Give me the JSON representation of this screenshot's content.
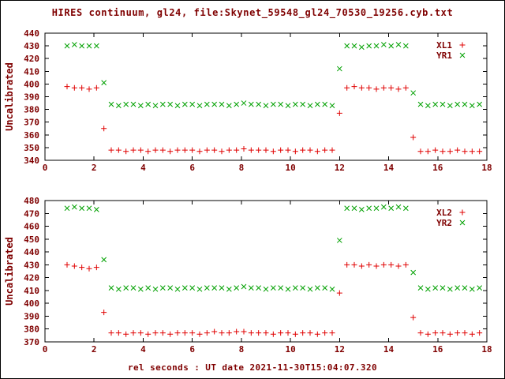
{
  "window": {
    "title": "HIRES continuum, gl24, file:Skynet_59548_gl24_70530_19256.cyb.txt",
    "xlabel": "rel seconds : UT date 2021-11-30T15:04:07.320"
  },
  "colors": {
    "text": "#7f0000",
    "axis": "#000000",
    "xl": "#e00000",
    "yr": "#00a000"
  },
  "chart_data": [
    {
      "type": "scatter",
      "ylabel": "Uncalibrated",
      "xlim": [
        0,
        18
      ],
      "ylim": [
        340,
        440
      ],
      "xtick_step": 2,
      "ytick_step": 10,
      "grid": false,
      "legend_position": "top-right",
      "series": [
        {
          "name": "XL1",
          "marker": "plus",
          "color": "#e00000",
          "points": [
            [
              0.9,
              398
            ],
            [
              1.2,
              397
            ],
            [
              1.5,
              397
            ],
            [
              1.8,
              396
            ],
            [
              2.1,
              397
            ],
            [
              2.4,
              365
            ],
            [
              2.7,
              348
            ],
            [
              3,
              348
            ],
            [
              3.3,
              347
            ],
            [
              3.6,
              348
            ],
            [
              3.9,
              348
            ],
            [
              4.2,
              347
            ],
            [
              4.5,
              348
            ],
            [
              4.8,
              348
            ],
            [
              5.1,
              347
            ],
            [
              5.4,
              348
            ],
            [
              5.7,
              348
            ],
            [
              6,
              348
            ],
            [
              6.3,
              347
            ],
            [
              6.6,
              348
            ],
            [
              6.9,
              348
            ],
            [
              7.2,
              347
            ],
            [
              7.5,
              348
            ],
            [
              7.8,
              348
            ],
            [
              8.1,
              349
            ],
            [
              8.4,
              348
            ],
            [
              8.7,
              348
            ],
            [
              9,
              348
            ],
            [
              9.3,
              347
            ],
            [
              9.6,
              348
            ],
            [
              9.9,
              348
            ],
            [
              10.2,
              347
            ],
            [
              10.5,
              348
            ],
            [
              10.8,
              348
            ],
            [
              11.1,
              347
            ],
            [
              11.4,
              348
            ],
            [
              11.7,
              348
            ],
            [
              12,
              377
            ],
            [
              12.3,
              397
            ],
            [
              12.6,
              398
            ],
            [
              12.9,
              397
            ],
            [
              13.2,
              397
            ],
            [
              13.5,
              396
            ],
            [
              13.8,
              397
            ],
            [
              14.1,
              397
            ],
            [
              14.4,
              396
            ],
            [
              14.7,
              397
            ],
            [
              15,
              358
            ],
            [
              15.3,
              347
            ],
            [
              15.6,
              347
            ],
            [
              15.9,
              348
            ],
            [
              16.2,
              347
            ],
            [
              16.5,
              347
            ],
            [
              16.8,
              348
            ],
            [
              17.1,
              347
            ],
            [
              17.4,
              347
            ],
            [
              17.7,
              347
            ]
          ]
        },
        {
          "name": "YR1",
          "marker": "cross",
          "color": "#00a000",
          "points": [
            [
              0.9,
              430
            ],
            [
              1.2,
              431
            ],
            [
              1.5,
              430
            ],
            [
              1.8,
              430
            ],
            [
              2.1,
              430
            ],
            [
              2.4,
              401
            ],
            [
              2.7,
              384
            ],
            [
              3,
              383
            ],
            [
              3.3,
              384
            ],
            [
              3.6,
              384
            ],
            [
              3.9,
              383
            ],
            [
              4.2,
              384
            ],
            [
              4.5,
              383
            ],
            [
              4.8,
              384
            ],
            [
              5.1,
              384
            ],
            [
              5.4,
              383
            ],
            [
              5.7,
              384
            ],
            [
              6,
              384
            ],
            [
              6.3,
              383
            ],
            [
              6.6,
              384
            ],
            [
              6.9,
              384
            ],
            [
              7.2,
              384
            ],
            [
              7.5,
              383
            ],
            [
              7.8,
              384
            ],
            [
              8.1,
              385
            ],
            [
              8.4,
              384
            ],
            [
              8.7,
              384
            ],
            [
              9,
              383
            ],
            [
              9.3,
              384
            ],
            [
              9.6,
              384
            ],
            [
              9.9,
              383
            ],
            [
              10.2,
              384
            ],
            [
              10.5,
              384
            ],
            [
              10.8,
              383
            ],
            [
              11.1,
              384
            ],
            [
              11.4,
              384
            ],
            [
              11.7,
              383
            ],
            [
              12,
              412
            ],
            [
              12.3,
              430
            ],
            [
              12.6,
              430
            ],
            [
              12.9,
              429
            ],
            [
              13.2,
              430
            ],
            [
              13.5,
              430
            ],
            [
              13.8,
              431
            ],
            [
              14.1,
              430
            ],
            [
              14.4,
              431
            ],
            [
              14.7,
              430
            ],
            [
              15,
              393
            ],
            [
              15.3,
              384
            ],
            [
              15.6,
              383
            ],
            [
              15.9,
              384
            ],
            [
              16.2,
              384
            ],
            [
              16.5,
              383
            ],
            [
              16.8,
              384
            ],
            [
              17.1,
              384
            ],
            [
              17.4,
              383
            ],
            [
              17.7,
              384
            ]
          ]
        }
      ]
    },
    {
      "type": "scatter",
      "ylabel": "Uncalibrated",
      "xlim": [
        0,
        18
      ],
      "ylim": [
        370,
        480
      ],
      "xtick_step": 2,
      "ytick_step": 10,
      "grid": false,
      "legend_position": "top-right",
      "series": [
        {
          "name": "XL2",
          "marker": "plus",
          "color": "#e00000",
          "points": [
            [
              0.9,
              430
            ],
            [
              1.2,
              429
            ],
            [
              1.5,
              428
            ],
            [
              1.8,
              427
            ],
            [
              2.1,
              428
            ],
            [
              2.4,
              393
            ],
            [
              2.7,
              377
            ],
            [
              3,
              377
            ],
            [
              3.3,
              376
            ],
            [
              3.6,
              377
            ],
            [
              3.9,
              377
            ],
            [
              4.2,
              376
            ],
            [
              4.5,
              377
            ],
            [
              4.8,
              377
            ],
            [
              5.1,
              376
            ],
            [
              5.4,
              377
            ],
            [
              5.7,
              377
            ],
            [
              6,
              377
            ],
            [
              6.3,
              376
            ],
            [
              6.6,
              377
            ],
            [
              6.9,
              378
            ],
            [
              7.2,
              377
            ],
            [
              7.5,
              377
            ],
            [
              7.8,
              378
            ],
            [
              8.1,
              378
            ],
            [
              8.4,
              377
            ],
            [
              8.7,
              377
            ],
            [
              9,
              377
            ],
            [
              9.3,
              376
            ],
            [
              9.6,
              377
            ],
            [
              9.9,
              377
            ],
            [
              10.2,
              376
            ],
            [
              10.5,
              377
            ],
            [
              10.8,
              377
            ],
            [
              11.1,
              376
            ],
            [
              11.4,
              377
            ],
            [
              11.7,
              377
            ],
            [
              12,
              408
            ],
            [
              12.3,
              430
            ],
            [
              12.6,
              430
            ],
            [
              12.9,
              429
            ],
            [
              13.2,
              430
            ],
            [
              13.5,
              429
            ],
            [
              13.8,
              430
            ],
            [
              14.1,
              430
            ],
            [
              14.4,
              429
            ],
            [
              14.7,
              430
            ],
            [
              15,
              389
            ],
            [
              15.3,
              377
            ],
            [
              15.6,
              376
            ],
            [
              15.9,
              377
            ],
            [
              16.2,
              377
            ],
            [
              16.5,
              376
            ],
            [
              16.8,
              377
            ],
            [
              17.1,
              377
            ],
            [
              17.4,
              376
            ],
            [
              17.7,
              377
            ]
          ]
        },
        {
          "name": "YR2",
          "marker": "cross",
          "color": "#00a000",
          "points": [
            [
              0.9,
              474
            ],
            [
              1.2,
              475
            ],
            [
              1.5,
              474
            ],
            [
              1.8,
              474
            ],
            [
              2.1,
              473
            ],
            [
              2.4,
              434
            ],
            [
              2.7,
              412
            ],
            [
              3,
              411
            ],
            [
              3.3,
              412
            ],
            [
              3.6,
              412
            ],
            [
              3.9,
              411
            ],
            [
              4.2,
              412
            ],
            [
              4.5,
              411
            ],
            [
              4.8,
              412
            ],
            [
              5.1,
              412
            ],
            [
              5.4,
              411
            ],
            [
              5.7,
              412
            ],
            [
              6,
              412
            ],
            [
              6.3,
              411
            ],
            [
              6.6,
              412
            ],
            [
              6.9,
              412
            ],
            [
              7.2,
              412
            ],
            [
              7.5,
              411
            ],
            [
              7.8,
              412
            ],
            [
              8.1,
              413
            ],
            [
              8.4,
              412
            ],
            [
              8.7,
              412
            ],
            [
              9,
              411
            ],
            [
              9.3,
              412
            ],
            [
              9.6,
              412
            ],
            [
              9.9,
              411
            ],
            [
              10.2,
              412
            ],
            [
              10.5,
              412
            ],
            [
              10.8,
              411
            ],
            [
              11.1,
              412
            ],
            [
              11.4,
              412
            ],
            [
              11.7,
              411
            ],
            [
              12,
              449
            ],
            [
              12.3,
              474
            ],
            [
              12.6,
              474
            ],
            [
              12.9,
              473
            ],
            [
              13.2,
              474
            ],
            [
              13.5,
              474
            ],
            [
              13.8,
              475
            ],
            [
              14.1,
              474
            ],
            [
              14.4,
              475
            ],
            [
              14.7,
              474
            ],
            [
              15,
              424
            ],
            [
              15.3,
              412
            ],
            [
              15.6,
              411
            ],
            [
              15.9,
              412
            ],
            [
              16.2,
              412
            ],
            [
              16.5,
              411
            ],
            [
              16.8,
              412
            ],
            [
              17.1,
              412
            ],
            [
              17.4,
              411
            ],
            [
              17.7,
              412
            ]
          ]
        }
      ]
    }
  ]
}
